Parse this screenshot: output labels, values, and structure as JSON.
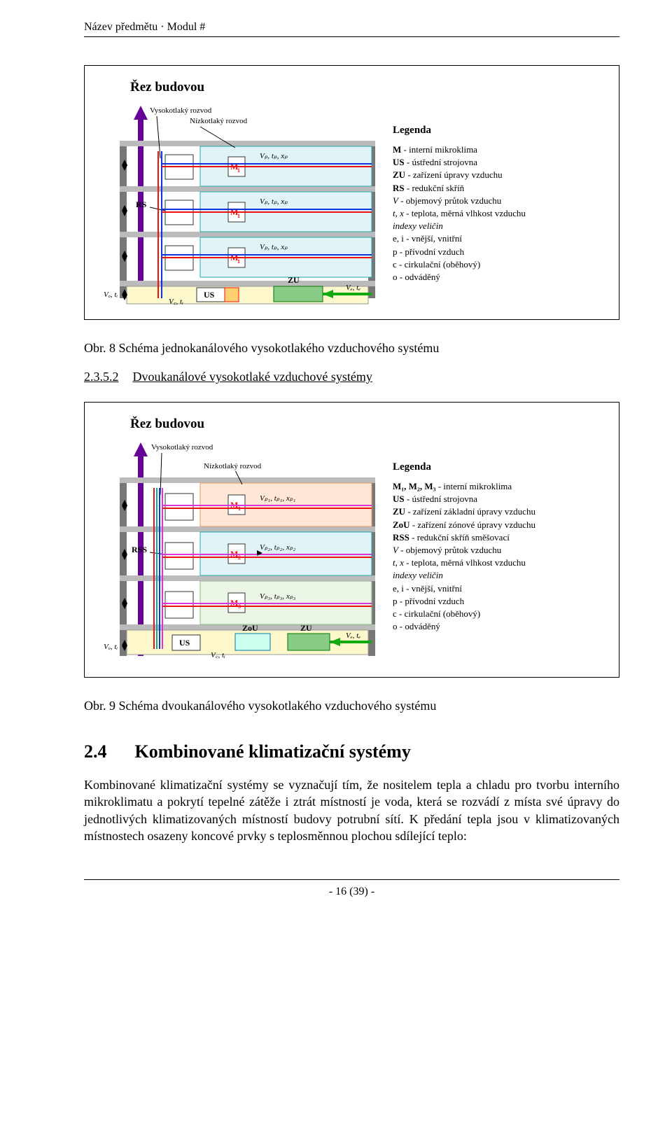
{
  "header": "Název předmětu · Modul #",
  "fig1": {
    "box_title": "Řez budovou",
    "callouts": {
      "vysokotlaky": "Vysokotlaký rozvod",
      "nizkotlaky": "Nízkotlaký rozvod",
      "rs": "RS",
      "M1": "M₁",
      "Vp": "Vₚ, tₚ, xₚ",
      "US": "US",
      "ZU": "ZU",
      "Vo": "Vₒ, tᵢ",
      "Vc": "V꜀, tᵢ",
      "Ve": "Vₑ, tₑ"
    },
    "legend": {
      "title": "Legenda",
      "lines": [
        {
          "b": "M",
          "t": " - interní mikroklima"
        },
        {
          "b": "US",
          "t": " - ústřední strojovna"
        },
        {
          "b": "ZU",
          "t": " - zařízení úpravy vzduchu"
        },
        {
          "b": "RS",
          "t": " - redukční skříň"
        },
        {
          "i": "V",
          "t": " - objemový průtok vzduchu"
        },
        {
          "i": "t, x",
          "t": " - teplota, měrná vlhkost vzduchu"
        },
        {
          "ind": "indexy veličin"
        },
        {
          "t": "e, i - vnější, vnitřní"
        },
        {
          "t": "p - přívodní vzduch"
        },
        {
          "t": "c - cirkulační (oběhový)"
        },
        {
          "t": "o - odváděný"
        }
      ]
    },
    "caption": "Obr. 8 Schéma jednokanálového vysokotlakého vzduchového systému"
  },
  "sub": {
    "num": "2.3.5.2",
    "txt": "Dvoukanálové vysokotlaké vzduchové systémy"
  },
  "fig2": {
    "box_title": "Řez budovou",
    "callouts": {
      "vysokotlaky": "Vysokotlaký rozvod",
      "nizkotlaky": "Nízkotlaký rozvod",
      "rss": "RSS",
      "M1": "M₁",
      "M2": "M₂",
      "M3": "M₃",
      "Vp1": "Vₚ₁, tₚ₁, xₚ₁",
      "Vp2": "Vₚ₂, tₚ₂, xₚ₂",
      "Vp3": "Vₚ₃, tₚ₃, xₚ₃",
      "US": "US",
      "ZoU": "ZoU",
      "ZU": "ZU",
      "Vo": "Vₒ, tᵢ",
      "Vc": "V꜀, tᵢ",
      "Ve": "Vₑ, tₑ"
    },
    "legend": {
      "title": "Legenda",
      "lines": [
        {
          "b": "M₁, M₂, M₃",
          "t": " - interní mikroklima"
        },
        {
          "b": "US",
          "t": " - ústřední strojovna"
        },
        {
          "b": "ZU",
          "t": " - zařízení základní úpravy vzduchu"
        },
        {
          "b": "ZoU",
          "t": " - zařízení zónové úpravy vzduchu"
        },
        {
          "b": "RSS",
          "t": " - redukční skříň směšovací"
        },
        {
          "i": "V",
          "t": " - objemový průtok vzduchu"
        },
        {
          "i": "t, x",
          "t": " - teplota, měrná vlhkost vzduchu"
        },
        {
          "ind": "indexy veličin"
        },
        {
          "t": "e, i - vnější, vnitřní"
        },
        {
          "t": "p - přívodní vzduch"
        },
        {
          "t": "c - cirkulační (oběhový)"
        },
        {
          "t": "o - odváděný"
        }
      ]
    },
    "caption": "Obr. 9 Schéma dvoukanálového vysokotlakého vzduchového systému"
  },
  "h2": {
    "num": "2.4",
    "txt": "Kombinované klimatizační systémy"
  },
  "para": "Kombinované klimatizační systémy se vyznačují tím, že nositelem tepla a chladu pro tvorbu interního mikroklimatu a pokrytí tepelné zátěže i ztrát místností je voda, která se rozvádí z místa své úpravy do jednotlivých klimatizovaných místností budovy potrubní sítí. K předání tepla jsou v klimatizovaných místnostech osazeny koncové prvky s teplosměnnou plochou sdílející teplo:",
  "footer": "- 16 (39) -"
}
